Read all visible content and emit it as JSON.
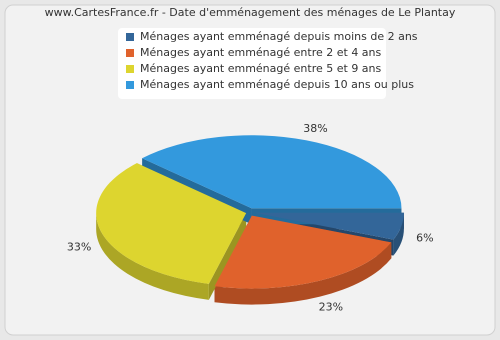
{
  "chart_data": {
    "type": "pie",
    "title": "www.CartesFrance.fr - Date d'emménagement des ménages de Le Plantay",
    "categories": [
      "Ménages ayant emménagé depuis moins de 2 ans",
      "Ménages ayant emménagé entre 2 et 4 ans",
      "Ménages ayant emménagé entre 5 et 9 ans",
      "Ménages ayant emménagé depuis 10 ans ou plus"
    ],
    "values": [
      6,
      23,
      33,
      38
    ],
    "value_labels": [
      "6%",
      "23%",
      "33%",
      "38%"
    ],
    "colors": [
      "#336699",
      "#e0622c",
      "#ddd52f",
      "#3399dd"
    ]
  }
}
